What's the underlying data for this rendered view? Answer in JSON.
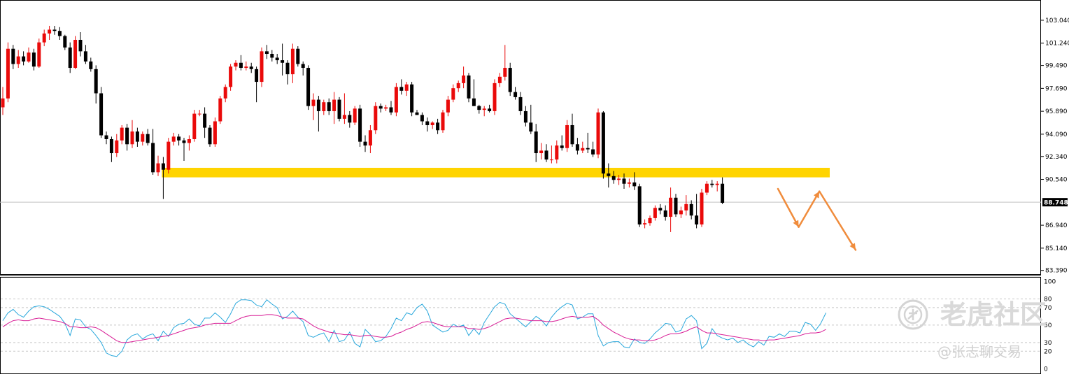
{
  "chart_data": {
    "type": "candlestick",
    "main": {
      "price_ticks": [
        "103.040",
        "101.240",
        "99.490",
        "97.690",
        "95.890",
        "94.090",
        "92.340",
        "90.540",
        "88.748",
        "86.940",
        "85.140",
        "83.390"
      ],
      "price_tick_values": [
        103.04,
        101.24,
        99.49,
        97.69,
        95.89,
        94.09,
        92.34,
        90.54,
        88.748,
        86.94,
        85.14,
        83.39
      ],
      "ylim": [
        83.1,
        104.3
      ],
      "current_price": {
        "label": "88.748",
        "value": 88.748
      },
      "grid": false,
      "candles": [
        [
          96.2,
          97.8,
          95.6,
          96.9
        ],
        [
          96.9,
          101.3,
          96.6,
          100.8
        ],
        [
          100.8,
          101.1,
          99.2,
          99.6
        ],
        [
          99.6,
          100.7,
          99.3,
          100.2
        ],
        [
          100.2,
          100.6,
          99.5,
          99.8
        ],
        [
          99.8,
          100.9,
          99.7,
          100.5
        ],
        [
          100.5,
          100.8,
          99.1,
          99.4
        ],
        [
          99.4,
          101.6,
          99.3,
          101.3
        ],
        [
          101.3,
          102.3,
          101.0,
          102.0
        ],
        [
          102.0,
          102.6,
          101.5,
          102.3
        ],
        [
          102.3,
          102.6,
          101.9,
          102.2
        ],
        [
          102.2,
          102.5,
          101.5,
          101.8
        ],
        [
          101.8,
          101.9,
          100.7,
          100.9
        ],
        [
          100.9,
          101.3,
          98.9,
          99.3
        ],
        [
          99.3,
          101.8,
          99.2,
          101.5
        ],
        [
          101.5,
          102.1,
          100.2,
          100.6
        ],
        [
          100.6,
          101.1,
          99.6,
          99.8
        ],
        [
          99.8,
          100.1,
          99.0,
          99.2
        ],
        [
          99.2,
          99.5,
          96.5,
          97.3
        ],
        [
          97.3,
          97.8,
          93.8,
          94.0
        ],
        [
          94.0,
          94.3,
          93.3,
          93.7
        ],
        [
          93.7,
          93.9,
          91.9,
          92.6
        ],
        [
          92.6,
          94.1,
          92.3,
          93.6
        ],
        [
          93.6,
          94.8,
          93.3,
          94.6
        ],
        [
          94.6,
          94.9,
          92.8,
          93.3
        ],
        [
          93.3,
          95.2,
          93.0,
          94.3
        ],
        [
          94.3,
          94.6,
          93.1,
          93.5
        ],
        [
          93.5,
          94.3,
          93.2,
          94.1
        ],
        [
          94.1,
          94.5,
          93.2,
          93.4
        ],
        [
          93.4,
          94.5,
          90.9,
          91.1
        ],
        [
          91.1,
          92.4,
          90.8,
          91.8
        ],
        [
          91.8,
          92.3,
          89.0,
          91.3
        ],
        [
          91.3,
          93.8,
          91.0,
          93.5
        ],
        [
          93.5,
          94.2,
          93.2,
          93.9
        ],
        [
          93.9,
          94.1,
          93.2,
          93.6
        ],
        [
          93.6,
          93.8,
          92.0,
          93.4
        ],
        [
          93.4,
          94.0,
          92.8,
          93.7
        ],
        [
          93.7,
          96.0,
          93.5,
          95.7
        ],
        [
          95.7,
          96.0,
          95.5,
          95.7
        ],
        [
          95.7,
          96.2,
          93.8,
          94.6
        ],
        [
          94.6,
          94.8,
          93.1,
          93.3
        ],
        [
          93.3,
          95.4,
          93.1,
          95.1
        ],
        [
          95.1,
          97.1,
          94.9,
          96.9
        ],
        [
          96.9,
          98.0,
          96.6,
          97.8
        ],
        [
          97.8,
          99.6,
          97.5,
          99.4
        ],
        [
          99.4,
          99.9,
          99.1,
          99.7
        ],
        [
          99.7,
          100.3,
          99.1,
          99.3
        ],
        [
          99.3,
          99.8,
          99.1,
          99.4
        ],
        [
          99.4,
          99.7,
          98.9,
          99.2
        ],
        [
          99.2,
          99.4,
          96.6,
          98.2
        ],
        [
          98.2,
          100.9,
          97.8,
          100.6
        ],
        [
          100.6,
          101.1,
          100.0,
          100.4
        ],
        [
          100.4,
          100.7,
          99.8,
          100.1
        ],
        [
          100.1,
          100.4,
          99.6,
          99.9
        ],
        [
          99.9,
          101.2,
          98.7,
          99.7
        ],
        [
          99.7,
          99.9,
          98.0,
          98.8
        ],
        [
          98.8,
          101.2,
          98.1,
          100.8
        ],
        [
          100.8,
          101.0,
          99.4,
          99.6
        ],
        [
          99.6,
          99.8,
          98.7,
          99.3
        ],
        [
          99.3,
          99.5,
          96.0,
          96.3
        ],
        [
          96.3,
          97.3,
          95.2,
          96.8
        ],
        [
          96.8,
          97.1,
          94.3,
          95.9
        ],
        [
          95.9,
          96.8,
          95.6,
          96.6
        ],
        [
          96.6,
          96.9,
          95.6,
          95.9
        ],
        [
          95.9,
          97.4,
          94.9,
          96.8
        ],
        [
          96.8,
          97.0,
          95.1,
          95.3
        ],
        [
          95.3,
          97.3,
          94.9,
          95.6
        ],
        [
          95.6,
          95.9,
          94.6,
          95.0
        ],
        [
          95.0,
          96.3,
          94.8,
          96.1
        ],
        [
          96.1,
          96.4,
          93.1,
          93.5
        ],
        [
          93.5,
          94.0,
          92.7,
          93.2
        ],
        [
          93.2,
          94.8,
          92.6,
          94.4
        ],
        [
          94.4,
          96.6,
          94.1,
          96.3
        ],
        [
          96.3,
          96.5,
          95.8,
          96.1
        ],
        [
          96.1,
          96.4,
          95.9,
          96.2
        ],
        [
          96.2,
          96.7,
          95.6,
          95.8
        ],
        [
          95.8,
          98.1,
          95.5,
          97.8
        ],
        [
          97.8,
          98.4,
          97.2,
          97.5
        ],
        [
          97.5,
          98.2,
          97.1,
          98.0
        ],
        [
          98.0,
          98.2,
          95.5,
          95.8
        ],
        [
          95.8,
          96.0,
          95.6,
          95.6
        ],
        [
          95.6,
          95.8,
          94.8,
          95.1
        ],
        [
          95.1,
          95.4,
          94.3,
          94.8
        ],
        [
          94.8,
          95.1,
          94.5,
          95.0
        ],
        [
          95.0,
          95.3,
          94.1,
          94.4
        ],
        [
          94.4,
          96.0,
          94.2,
          95.8
        ],
        [
          95.8,
          97.1,
          95.5,
          96.8
        ],
        [
          96.8,
          98.0,
          96.6,
          97.7
        ],
        [
          97.7,
          98.3,
          97.4,
          98.1
        ],
        [
          98.1,
          99.4,
          97.7,
          98.7
        ],
        [
          98.7,
          98.9,
          96.6,
          96.9
        ],
        [
          96.9,
          98.4,
          96.3,
          96.3
        ],
        [
          96.3,
          96.4,
          95.7,
          96.0
        ],
        [
          96.0,
          96.3,
          95.5,
          96.1
        ],
        [
          96.1,
          96.4,
          95.8,
          95.9
        ],
        [
          95.9,
          98.4,
          95.6,
          98.1
        ],
        [
          98.1,
          98.9,
          97.8,
          98.6
        ],
        [
          98.6,
          101.1,
          98.3,
          99.3
        ],
        [
          99.3,
          99.7,
          97.1,
          97.4
        ],
        [
          97.4,
          97.8,
          96.8,
          97.0
        ],
        [
          97.0,
          97.4,
          95.6,
          95.9
        ],
        [
          95.9,
          96.3,
          94.7,
          95.0
        ],
        [
          95.0,
          96.4,
          94.1,
          94.3
        ],
        [
          94.3,
          94.9,
          91.9,
          92.6
        ],
        [
          92.6,
          93.4,
          92.1,
          92.8
        ],
        [
          92.8,
          93.3,
          91.9,
          92.1
        ],
        [
          92.1,
          93.2,
          91.8,
          92.1
        ],
        [
          92.1,
          93.6,
          91.8,
          93.2
        ],
        [
          93.2,
          94.0,
          92.8,
          93.0
        ],
        [
          93.0,
          95.2,
          92.7,
          94.8
        ],
        [
          94.8,
          95.7,
          93.1,
          93.3
        ],
        [
          93.3,
          93.8,
          92.5,
          92.8
        ],
        [
          92.8,
          93.5,
          92.6,
          93.0
        ],
        [
          93.0,
          94.2,
          92.6,
          92.9
        ],
        [
          92.9,
          93.5,
          92.3,
          92.5
        ],
        [
          92.5,
          96.1,
          92.2,
          95.8
        ],
        [
          95.8,
          95.9,
          90.6,
          91.0
        ],
        [
          91.0,
          91.8,
          89.9,
          90.8
        ],
        [
          90.8,
          91.2,
          90.2,
          90.5
        ],
        [
          90.5,
          90.9,
          90.1,
          90.6
        ],
        [
          90.6,
          91.0,
          89.8,
          90.2
        ],
        [
          90.2,
          90.6,
          89.9,
          90.3
        ],
        [
          90.3,
          91.1,
          89.7,
          90.0
        ],
        [
          90.0,
          90.2,
          86.8,
          87.0
        ],
        [
          87.0,
          87.4,
          86.7,
          87.1
        ],
        [
          87.1,
          87.7,
          86.9,
          87.5
        ],
        [
          87.5,
          88.5,
          87.3,
          88.3
        ],
        [
          88.3,
          88.6,
          87.8,
          88.1
        ],
        [
          88.1,
          88.5,
          87.3,
          87.6
        ],
        [
          87.6,
          89.9,
          86.4,
          89.1
        ],
        [
          89.1,
          89.4,
          87.6,
          87.8
        ],
        [
          87.8,
          88.4,
          87.5,
          88.1
        ],
        [
          88.1,
          89.3,
          87.7,
          88.6
        ],
        [
          88.6,
          88.9,
          87.4,
          87.7
        ],
        [
          87.7,
          89.4,
          86.7,
          87.0
        ],
        [
          87.0,
          89.8,
          86.8,
          89.5
        ],
        [
          89.5,
          90.4,
          89.3,
          90.2
        ],
        [
          90.2,
          90.5,
          89.9,
          90.1
        ],
        [
          90.1,
          90.4,
          89.6,
          90.2
        ],
        [
          90.2,
          90.7,
          88.6,
          88.7
        ]
      ],
      "support_zone": {
        "from": 90.7,
        "to": 91.45,
        "start_index": 31,
        "end_index": 160,
        "color": "#ffd400"
      },
      "forecast_path": {
        "points": [
          [
            150,
            89.8
          ],
          [
            154,
            86.8
          ],
          [
            158,
            89.6
          ],
          [
            165,
            85.0
          ]
        ],
        "color": "#f08c3c"
      },
      "colors": {
        "bull": "#ea0a0a",
        "bear": "#000000",
        "price_line": "#c0c0c0",
        "price_tag_bg": "#000000"
      }
    },
    "oscillator": {
      "ticks": [
        "100",
        "80",
        "70",
        "50",
        "30",
        "20",
        "0"
      ],
      "tick_values": [
        100,
        80,
        70,
        50,
        30,
        20,
        0
      ],
      "ylim": [
        -3,
        102
      ],
      "reference_lines": [
        80,
        70,
        50,
        30,
        20
      ],
      "series": [
        {
          "color": "#2aa8dc",
          "values": [
            55,
            64,
            68,
            62,
            59,
            66,
            71,
            72,
            71,
            68,
            64,
            60,
            52,
            38,
            57,
            56,
            48,
            45,
            38,
            30,
            18,
            15,
            14,
            20,
            33,
            38,
            40,
            34,
            38,
            40,
            32,
            43,
            37,
            47,
            51,
            52,
            57,
            51,
            49,
            58,
            58,
            64,
            59,
            53,
            63,
            75,
            79,
            79,
            78,
            73,
            71,
            79,
            74,
            70,
            57,
            60,
            66,
            59,
            54,
            38,
            36,
            39,
            41,
            31,
            44,
            31,
            33,
            42,
            29,
            25,
            45,
            39,
            31,
            32,
            37,
            46,
            58,
            55,
            64,
            62,
            70,
            74,
            66,
            50,
            46,
            42,
            44,
            51,
            48,
            50,
            38,
            46,
            39,
            53,
            62,
            71,
            76,
            74,
            63,
            58,
            53,
            48,
            54,
            60,
            56,
            49,
            59,
            66,
            71,
            75,
            73,
            57,
            59,
            63,
            63,
            38,
            26,
            30,
            31,
            31,
            25,
            24,
            34,
            30,
            29,
            34,
            41,
            46,
            52,
            51,
            42,
            44,
            57,
            61,
            55,
            23,
            29,
            46,
            38,
            35,
            33,
            35,
            30,
            33,
            28,
            25,
            31,
            27,
            37,
            36,
            40,
            37,
            43,
            43,
            41,
            53,
            51,
            44,
            52,
            64
          ]
        },
        {
          "color": "#d81e96",
          "values": [
            48,
            52,
            55,
            56,
            55,
            55,
            57,
            58,
            57,
            56,
            55,
            54,
            52,
            48,
            48,
            47,
            47,
            48,
            47,
            44,
            40,
            36,
            32,
            30,
            30,
            31,
            32,
            33,
            34,
            35,
            36,
            37,
            38,
            40,
            42,
            44,
            46,
            47,
            48,
            50,
            51,
            52,
            52,
            52,
            52,
            55,
            58,
            60,
            61,
            61,
            61,
            62,
            62,
            61,
            59,
            58,
            58,
            58,
            57,
            53,
            49,
            46,
            44,
            42,
            41,
            40,
            39,
            39,
            38,
            37,
            38,
            38,
            37,
            36,
            36,
            37,
            40,
            42,
            45,
            47,
            50,
            53,
            54,
            53,
            51,
            49,
            48,
            48,
            48,
            48,
            46,
            46,
            45,
            46,
            48,
            51,
            54,
            57,
            58,
            58,
            57,
            56,
            55,
            55,
            55,
            54,
            54,
            55,
            57,
            59,
            60,
            59,
            59,
            59,
            60,
            56,
            50,
            46,
            42,
            39,
            36,
            34,
            33,
            33,
            32,
            32,
            33,
            35,
            38,
            40,
            40,
            41,
            43,
            46,
            48,
            44,
            41,
            41,
            40,
            39,
            38,
            37,
            36,
            35,
            34,
            33,
            33,
            32,
            33,
            33,
            34,
            35,
            36,
            37,
            38,
            40,
            41,
            41,
            42,
            45
          ]
        }
      ]
    }
  },
  "watermark": {
    "main": "老虎社区",
    "sub": "@张志聊交易",
    "icon": "tiger-coin-logo-icon"
  }
}
